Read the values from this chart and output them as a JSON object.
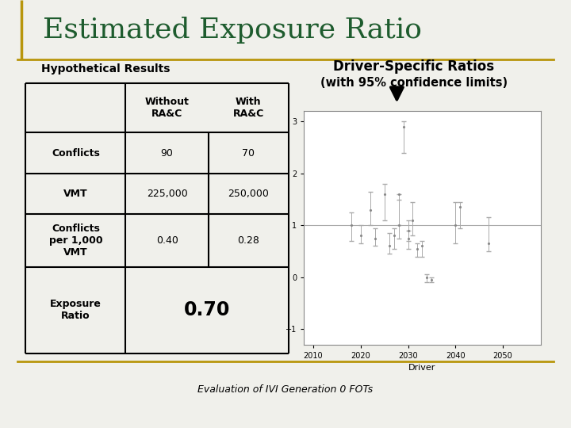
{
  "title": "Estimated Exposure Ratio",
  "subtitle": "Hypothetical Results",
  "bg_color": "#f0f0eb",
  "title_color": "#1e5c2e",
  "border_color": "#b8960c",
  "col_header1": "Without\nRA&C",
  "col_header2": "With\nRA&C",
  "row_labels": [
    "Conflicts",
    "VMT",
    "Conflicts\nper 1,000\nVMT",
    "Exposure\nRatio"
  ],
  "row_val1": [
    "90",
    "225,000",
    "0.40",
    "0.70"
  ],
  "row_val2": [
    "70",
    "250,000",
    "0.28",
    null
  ],
  "driver_title": "Driver-Specific Ratios",
  "driver_subtitle": "(with 95% confidence limits)",
  "footer_text": "Evaluation of IVI Generation 0 FOTs",
  "plot_xlim": [
    2008,
    2058
  ],
  "plot_ylim": [
    -1.3,
    3.2
  ],
  "plot_yticks": [
    -1,
    0,
    1,
    2,
    3
  ],
  "plot_xticks": [
    2010,
    2020,
    2030,
    2040,
    2050
  ],
  "plot_xlabel": "Driver",
  "plot_hline_y": 1.0
}
